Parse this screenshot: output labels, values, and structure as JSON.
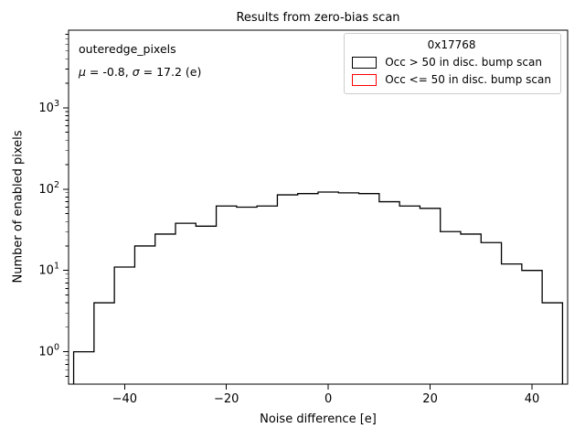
{
  "chart_data": {
    "type": "bar",
    "subtype": "step-histogram",
    "title": "Results from zero-bias scan",
    "xlabel": "Noise difference [e]",
    "ylabel": "Number of enabled pixels",
    "yscale": "log",
    "xlim": [
      -51,
      47
    ],
    "ylim": [
      0.4,
      9000
    ],
    "grid": false,
    "xticks": [
      {
        "value": -40,
        "label": "−40"
      },
      {
        "value": -20,
        "label": "−20"
      },
      {
        "value": 0,
        "label": "0"
      },
      {
        "value": 20,
        "label": "20"
      },
      {
        "value": 40,
        "label": "40"
      }
    ],
    "yticks": [
      {
        "value": 1,
        "base": "10",
        "exp": "0"
      },
      {
        "value": 10,
        "base": "10",
        "exp": "1"
      },
      {
        "value": 100,
        "base": "10",
        "exp": "2"
      },
      {
        "value": 1000,
        "base": "10",
        "exp": "3"
      }
    ],
    "bin_edges": [
      -50,
      -46,
      -42,
      -38,
      -34,
      -30,
      -26,
      -22,
      -18,
      -14,
      -10,
      -6,
      -2,
      2,
      6,
      10,
      14,
      18,
      22,
      26,
      30,
      34,
      38,
      42,
      46
    ],
    "series": [
      {
        "name": "Occ > 50 in disc. bump scan",
        "color": "#000000",
        "counts": [
          1,
          4,
          11,
          20,
          28,
          38,
          35,
          62,
          60,
          62,
          85,
          88,
          92,
          90,
          88,
          70,
          62,
          58,
          30,
          28,
          22,
          12,
          10,
          4
        ]
      },
      {
        "name": "Occ <= 50 in disc. bump scan",
        "color": "#ff0000",
        "counts": []
      }
    ],
    "annotation": {
      "line1": "outeredge_pixels",
      "mu": "μ",
      "mu_rest": " = -0.8, ",
      "sigma": "σ",
      "sigma_rest": " = 17.2 (e)"
    },
    "legend": {
      "title": "0x17768",
      "position": "upper right",
      "entries": [
        {
          "label": "Occ > 50 in disc. bump scan",
          "color": "#000000"
        },
        {
          "label": "Occ <= 50 in disc. bump scan",
          "color": "#ff0000"
        }
      ]
    }
  }
}
